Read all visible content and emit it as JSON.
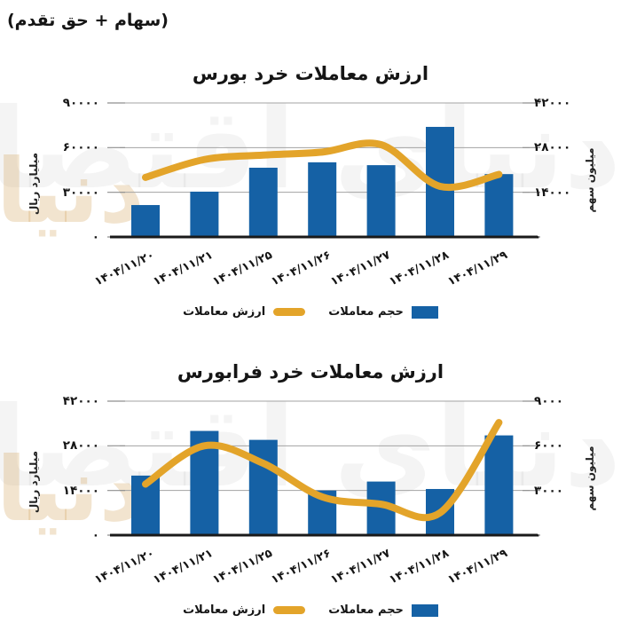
{
  "header": {
    "note": "(سهام + حق تقدم)"
  },
  "watermark": "دنیای اقتصاد",
  "colors": {
    "bar": "#1561A5",
    "line": "#E3A42A",
    "grid": "#A3A3A3",
    "tick": "#8F8F8F",
    "axis_line": "#1A1A1A",
    "text": "#151515"
  },
  "chart_data": [
    {
      "type": "bar",
      "title": "ارزش معاملات خرد بورس",
      "categories": [
        "۱۴۰۴/۱۱/۲۰",
        "۱۴۰۴/۱۱/۲۱",
        "۱۴۰۴/۱۱/۲۵",
        "۱۴۰۴/۱۱/۲۶",
        "۱۴۰۴/۱۱/۲۷",
        "۱۴۰۴/۱۱/۲۸",
        "۱۴۰۴/۱۱/۲۹"
      ],
      "series": [
        {
          "name": "حجم معاملات",
          "kind": "bar",
          "axis": "right",
          "values": [
            10000,
            14200,
            21700,
            23400,
            22500,
            34500,
            19700
          ]
        },
        {
          "name": "ارزش معاملات",
          "kind": "line",
          "axis": "left",
          "values": [
            40000,
            52000,
            55000,
            57000,
            62000,
            34000,
            42000
          ]
        }
      ],
      "left_axis": {
        "label": "میلیارد ریال",
        "max": 90000,
        "tick_values": [
          0,
          30000,
          60000,
          90000
        ],
        "ticks": [
          "۰",
          "۳۰۰۰۰",
          "۶۰۰۰۰",
          "۹۰۰۰۰"
        ]
      },
      "right_axis": {
        "label": "میلیون سهم",
        "max": 42000,
        "tick_values": [
          0,
          14000,
          28000,
          42000
        ],
        "ticks": [
          "۰",
          "۱۴۰۰۰",
          "۲۸۰۰۰",
          "۴۲۰۰۰"
        ]
      },
      "grid": true,
      "legend_position": "bottom"
    },
    {
      "type": "bar",
      "title": "ارزش معاملات خرد فرابورس",
      "categories": [
        "۱۴۰۴/۱۱/۲۰",
        "۱۴۰۴/۱۱/۲۱",
        "۱۴۰۴/۱۱/۲۵",
        "۱۴۰۴/۱۱/۲۶",
        "۱۴۰۴/۱۱/۲۷",
        "۱۴۰۴/۱۱/۲۸",
        "۱۴۰۴/۱۱/۲۹"
      ],
      "series": [
        {
          "name": "حجم معاملات",
          "kind": "bar",
          "axis": "right",
          "values": [
            4000,
            7000,
            6400,
            3000,
            3600,
            3100,
            6700
          ]
        },
        {
          "name": "ارزش معاملات",
          "kind": "line",
          "axis": "left",
          "values": [
            16000,
            28000,
            22500,
            12000,
            9700,
            7000,
            35300
          ]
        }
      ],
      "left_axis": {
        "label": "میلیارد ریال",
        "max": 42000,
        "tick_values": [
          0,
          14000,
          28000,
          42000
        ],
        "ticks": [
          "۰",
          "۱۴۰۰۰",
          "۲۸۰۰۰",
          "۴۲۰۰۰"
        ]
      },
      "right_axis": {
        "label": "میلیون سهم",
        "max": 9000,
        "tick_values": [
          0,
          3000,
          6000,
          9000
        ],
        "ticks": [
          "۰",
          "۳۰۰۰",
          "۶۰۰۰",
          "۹۰۰۰"
        ]
      },
      "grid": true,
      "legend_position": "bottom"
    }
  ]
}
